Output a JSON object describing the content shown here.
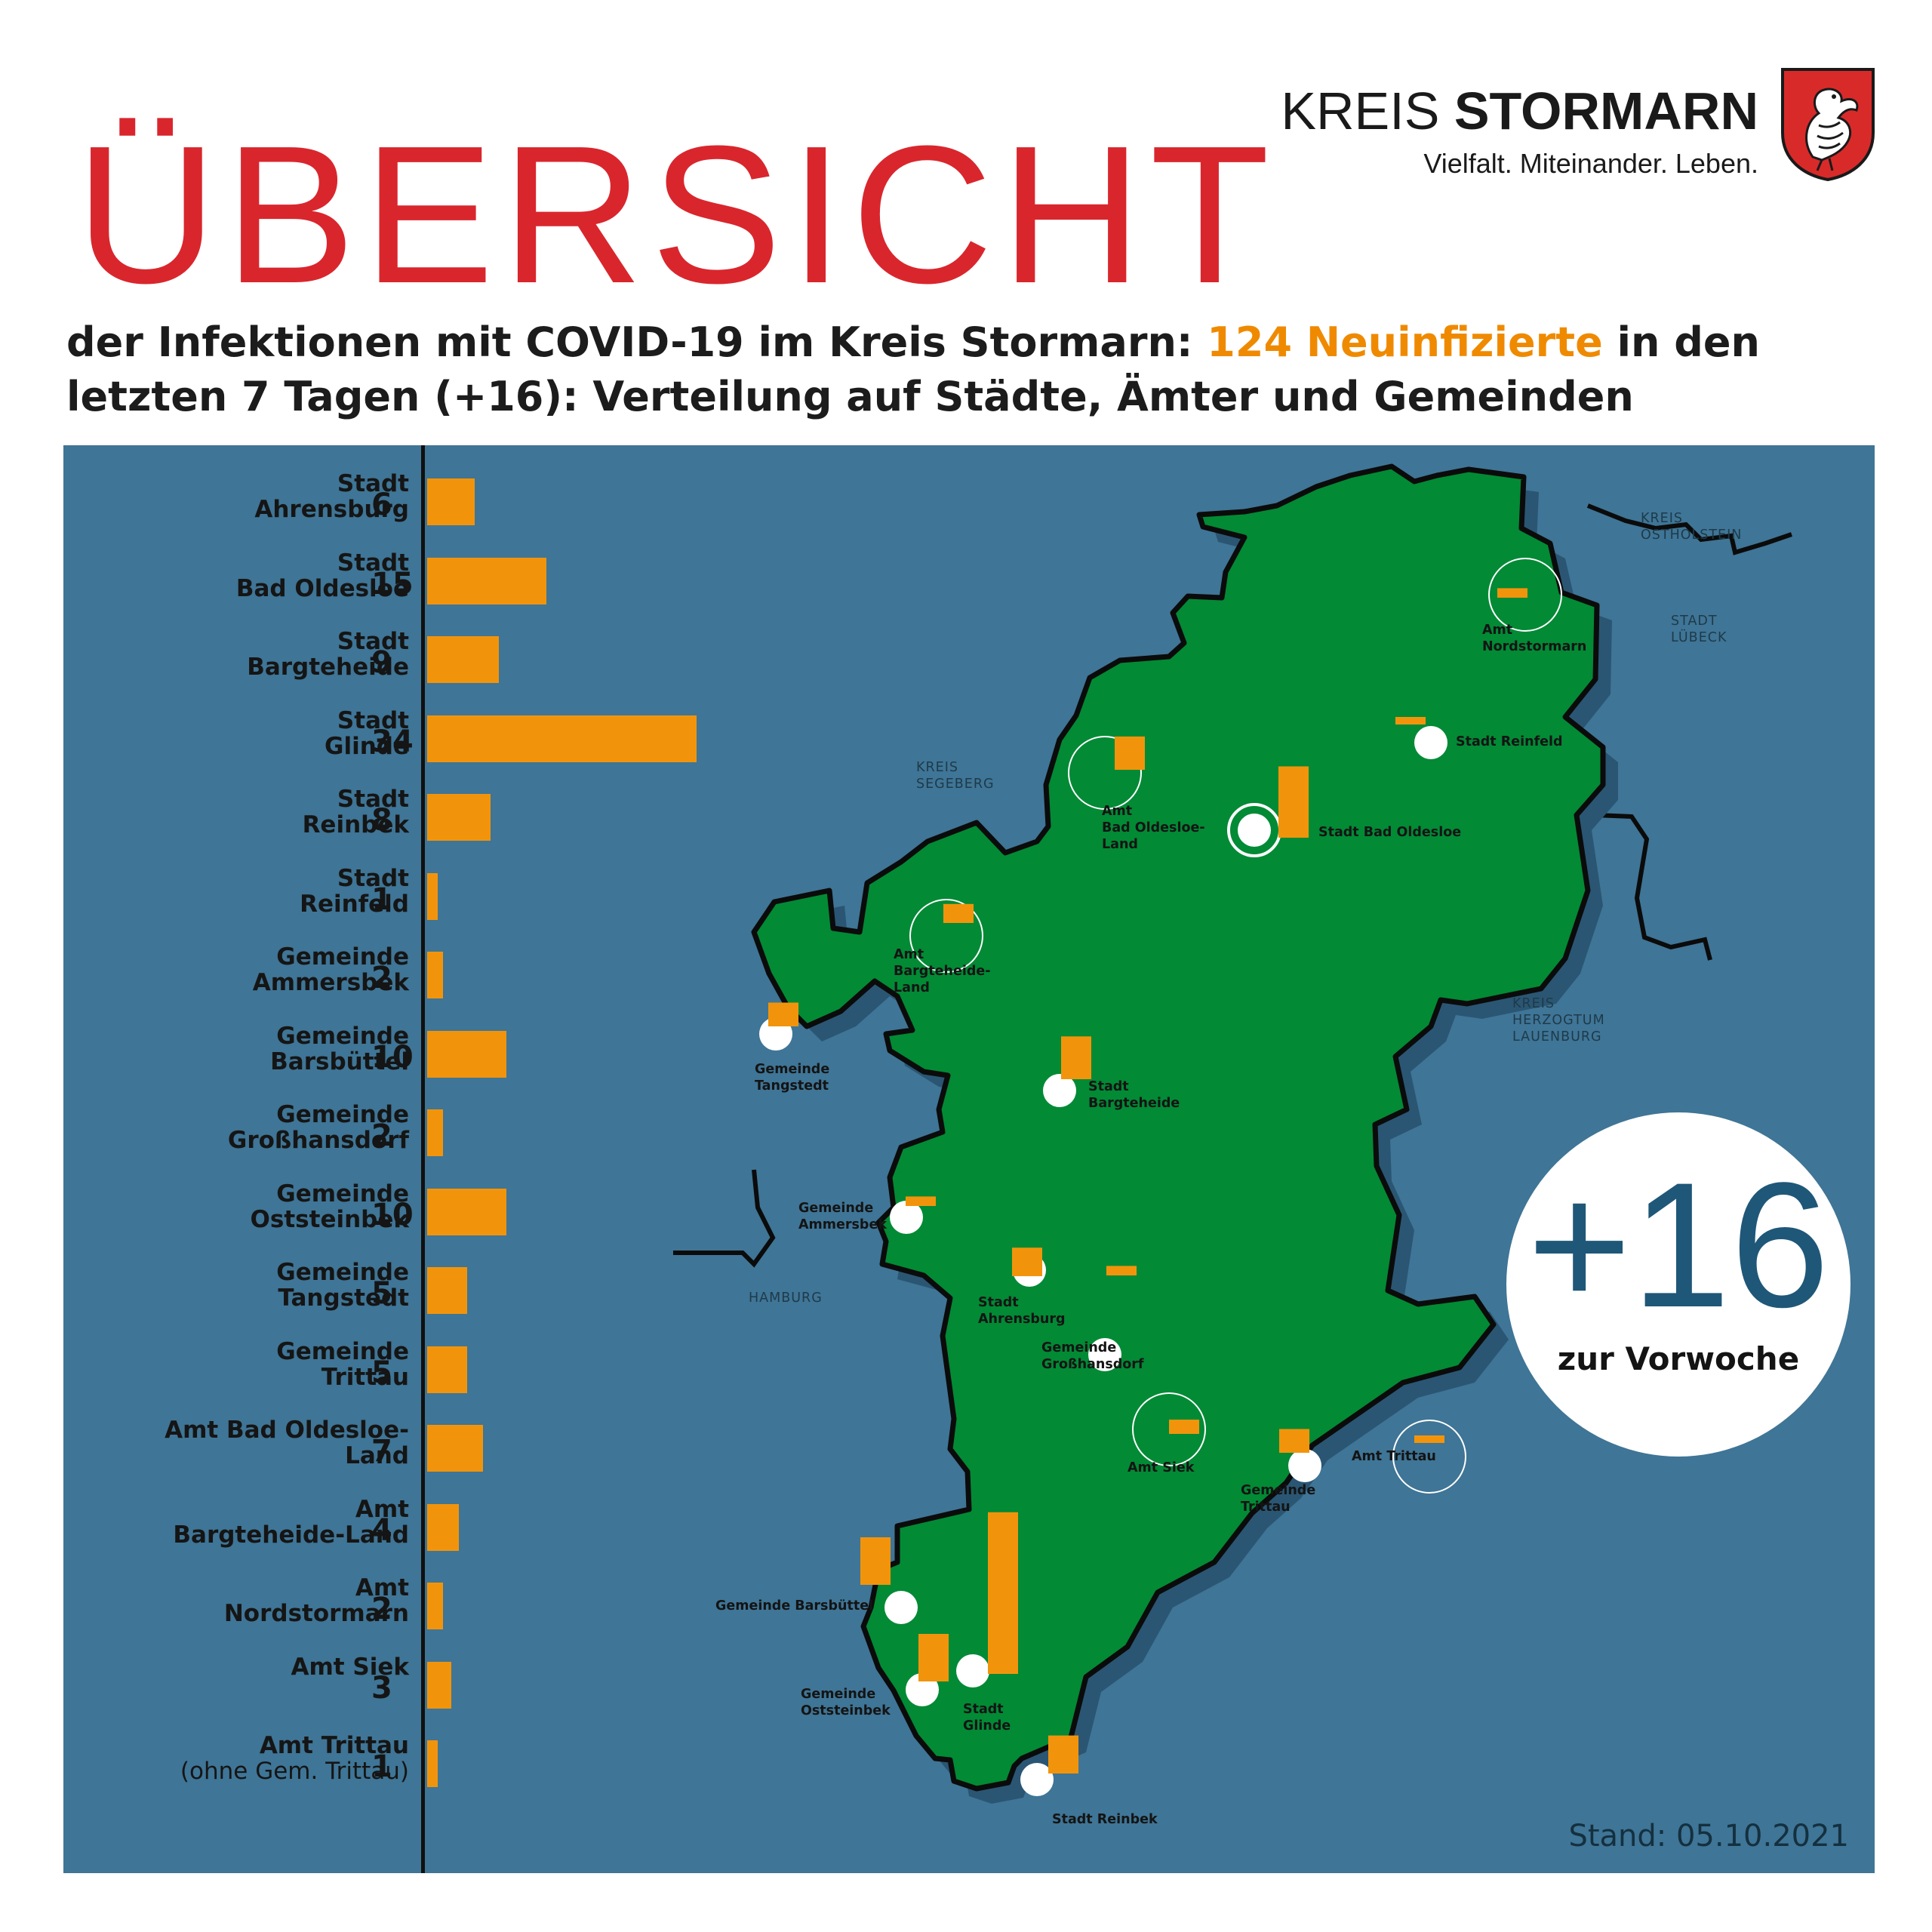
{
  "header": {
    "title": "ÜBERSICHT",
    "subtitle_pre": "der Infektionen mit COVID-19 im Kreis Stormarn: ",
    "subtitle_highlight": "124 Neuinfizierte",
    "subtitle_post": " in den letzten 7 Tagen (+16): Verteilung auf Städte, Ämter und Gemeinden",
    "highlight_color": "#ef8a00"
  },
  "logo": {
    "name_light": "KREIS",
    "name_bold": "STORMARN",
    "claim": "Vielfalt. Miteinander. Leben.",
    "crest": "kreis-stormarn-coat-of-arms"
  },
  "colors": {
    "title_red": "#d9262d",
    "panel_blue": "#3f7596",
    "land_green": "#028a35",
    "bar_orange": "#f2940b"
  },
  "chart_data": {
    "type": "bar",
    "orientation": "horizontal",
    "categories": [
      {
        "line1": "Stadt",
        "line2": "Ahrensburg"
      },
      {
        "line1": "Stadt",
        "line2": "Bad Oldesloe"
      },
      {
        "line1": "Stadt",
        "line2": "Bargteheide"
      },
      {
        "line1": "Stadt",
        "line2": "Glinde"
      },
      {
        "line1": "Stadt",
        "line2": "Reinbek"
      },
      {
        "line1": "Stadt",
        "line2": "Reinfeld"
      },
      {
        "line1": "Gemeinde",
        "line2": "Ammersbek"
      },
      {
        "line1": "Gemeinde",
        "line2": "Barsbüttel"
      },
      {
        "line1": "Gemeinde",
        "line2": "Großhansdorf"
      },
      {
        "line1": "Gemeinde",
        "line2": "Oststeinbek"
      },
      {
        "line1": "Gemeinde",
        "line2": "Tangstedt"
      },
      {
        "line1": "Gemeinde",
        "line2": "Trittau"
      },
      {
        "line1": "Amt Bad Oldesloe-",
        "line2": "Land"
      },
      {
        "line1": "Amt",
        "line2": "Bargteheide-Land"
      },
      {
        "line1": "Amt",
        "line2": "Nordstormarn"
      },
      {
        "line1": "Amt Siek",
        "line2": ""
      },
      {
        "line1": "Amt Trittau",
        "line2": "(ohne Gem. Trittau)"
      }
    ],
    "values": [
      6,
      15,
      9,
      34,
      8,
      1,
      2,
      10,
      2,
      10,
      5,
      5,
      7,
      4,
      2,
      3,
      1
    ],
    "value_labels": [
      "6",
      "15",
      "9",
      "34",
      "8",
      "1",
      "2",
      "10",
      "2",
      "10",
      "5",
      "5",
      "7",
      "4",
      "2",
      "3",
      "1"
    ],
    "xlim": [
      0,
      34
    ],
    "grid": false
  },
  "map": {
    "regions": {
      "ostholstein": [
        "KREIS",
        "OSTHOLSTEIN"
      ],
      "luebeck": [
        "STADT",
        "LÜBECK"
      ],
      "segeberg": [
        "KREIS",
        "SEGEBERG"
      ],
      "lauenburg": [
        "KREIS",
        "HERZOGTUM",
        "LAUENBURG"
      ],
      "hamburg": [
        "HAMBURG"
      ]
    },
    "places": [
      {
        "lines": [
          "Amt",
          "Nordstormarn"
        ],
        "type": "amt",
        "value": 2
      },
      {
        "lines": [
          "Stadt Reinfeld"
        ],
        "type": "stadt",
        "value": 1
      },
      {
        "lines": [
          "Amt",
          "Bad Oldesloe-",
          "Land"
        ],
        "type": "amt",
        "value": 7
      },
      {
        "lines": [
          "Stadt Bad Oldesloe"
        ],
        "type": "stadt",
        "value": 15
      },
      {
        "lines": [
          "Amt",
          "Bargteheide-",
          "Land"
        ],
        "type": "amt",
        "value": 4
      },
      {
        "lines": [
          "Gemeinde",
          "Tangstedt"
        ],
        "type": "gemeinde",
        "value": 5
      },
      {
        "lines": [
          "Stadt",
          "Bargteheide"
        ],
        "type": "stadt",
        "value": 9
      },
      {
        "lines": [
          "Gemeinde",
          "Ammersbek"
        ],
        "type": "gemeinde",
        "value": 2
      },
      {
        "lines": [
          "Stadt",
          "Ahrensburg"
        ],
        "type": "stadt",
        "value": 6
      },
      {
        "lines": [
          "Gemeinde",
          "Großhansdorf"
        ],
        "type": "gemeinde",
        "value": 2
      },
      {
        "lines": [
          "Amt Siek"
        ],
        "type": "amt",
        "value": 3
      },
      {
        "lines": [
          "Gemeinde",
          "Trittau"
        ],
        "type": "gemeinde",
        "value": 5
      },
      {
        "lines": [
          "Amt Trittau"
        ],
        "type": "amt",
        "value": 1
      },
      {
        "lines": [
          "Gemeinde Barsbüttel"
        ],
        "type": "gemeinde",
        "value": 10
      },
      {
        "lines": [
          "Gemeinde",
          "Oststeinbek"
        ],
        "type": "gemeinde",
        "value": 10
      },
      {
        "lines": [
          "Stadt",
          "Glinde"
        ],
        "type": "stadt",
        "value": 34
      },
      {
        "lines": [
          "Stadt Reinbek"
        ],
        "type": "stadt",
        "value": 8
      }
    ]
  },
  "badge": {
    "value": "+16",
    "caption": "zur Vorwoche"
  },
  "stand": "Stand: 05.10.2021"
}
